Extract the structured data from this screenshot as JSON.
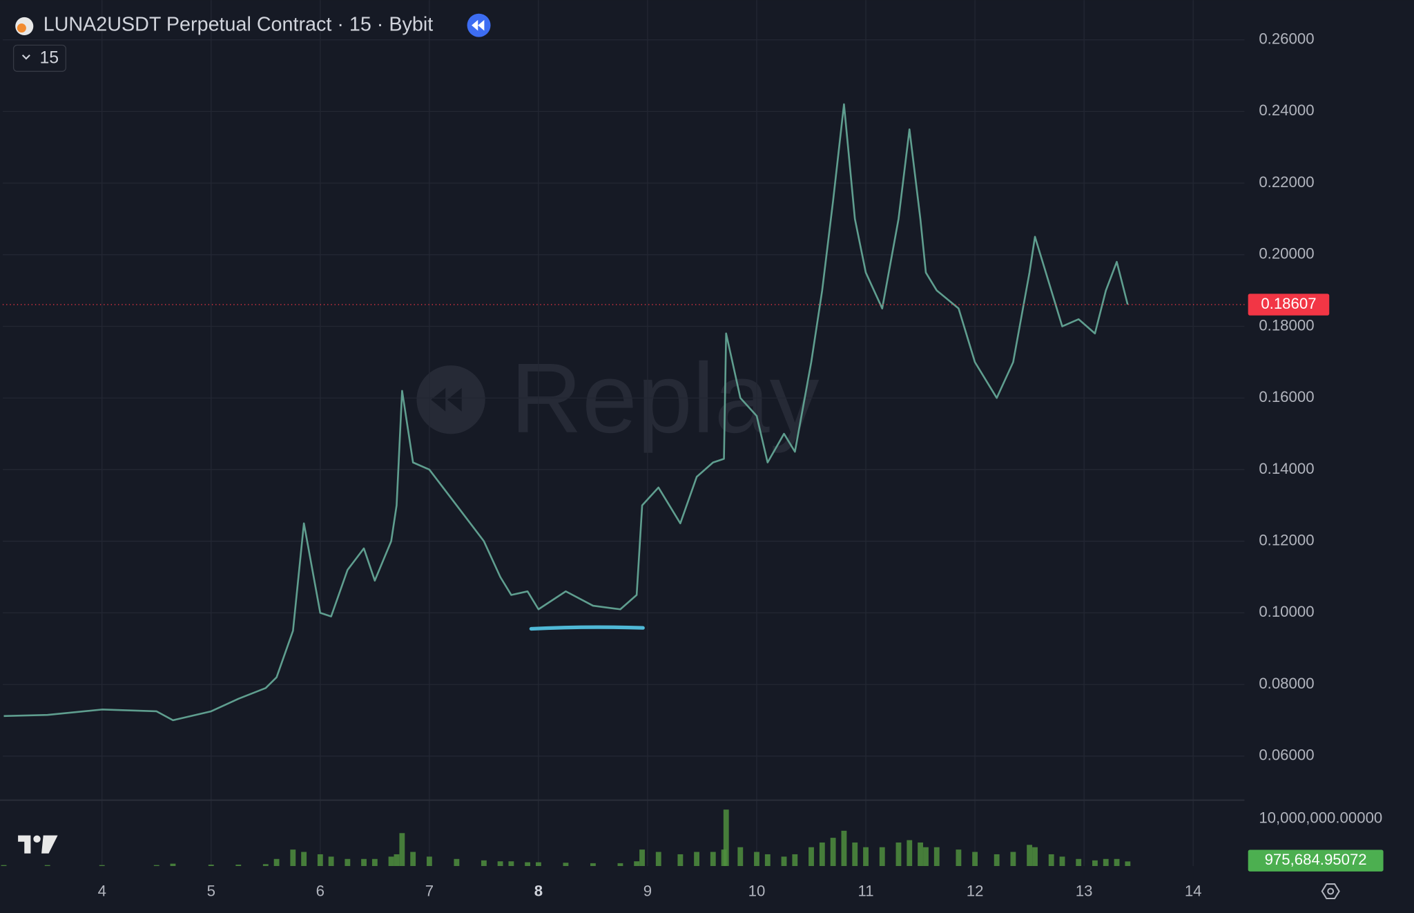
{
  "chart_data": [
    {
      "type": "line",
      "title": "LUNA2USDT Perpetual Contract · 15 · Bybit",
      "interval": "15",
      "watermark": "Replay",
      "color": "#5f9e8f",
      "x": [
        3.1,
        3.5,
        4.0,
        4.5,
        4.65,
        5.0,
        5.25,
        5.5,
        5.6,
        5.75,
        5.85,
        6.0,
        6.1,
        6.25,
        6.4,
        6.5,
        6.65,
        6.7,
        6.75,
        6.85,
        7.0,
        7.25,
        7.5,
        7.65,
        7.75,
        7.9,
        8.0,
        8.25,
        8.5,
        8.75,
        8.9,
        8.95,
        9.1,
        9.3,
        9.45,
        9.6,
        9.7,
        9.72,
        9.85,
        10.0,
        10.1,
        10.25,
        10.35,
        10.5,
        10.6,
        10.7,
        10.8,
        10.9,
        11.0,
        11.15,
        11.3,
        11.4,
        11.5,
        11.55,
        11.65,
        11.85,
        12.0,
        12.2,
        12.35,
        12.5,
        12.55,
        12.7,
        12.8,
        12.95,
        13.1,
        13.2,
        13.3,
        13.4
      ],
      "values": [
        0.0712,
        0.0715,
        0.073,
        0.0725,
        0.07,
        0.0725,
        0.076,
        0.079,
        0.082,
        0.095,
        0.125,
        0.1,
        0.099,
        0.112,
        0.118,
        0.109,
        0.12,
        0.13,
        0.162,
        0.142,
        0.14,
        0.13,
        0.12,
        0.11,
        0.105,
        0.106,
        0.101,
        0.106,
        0.102,
        0.101,
        0.105,
        0.13,
        0.135,
        0.125,
        0.138,
        0.142,
        0.143,
        0.178,
        0.16,
        0.155,
        0.142,
        0.15,
        0.145,
        0.17,
        0.19,
        0.215,
        0.242,
        0.21,
        0.195,
        0.185,
        0.21,
        0.235,
        0.21,
        0.195,
        0.19,
        0.185,
        0.17,
        0.16,
        0.17,
        0.195,
        0.205,
        0.19,
        0.18,
        0.182,
        0.178,
        0.19,
        0.198,
        0.18607
      ],
      "last_value": 0.18607,
      "last_color": "#f23645",
      "xlim": [
        3.09,
        14.47
      ],
      "xticks": [
        4,
        5,
        6,
        7,
        8,
        9,
        10,
        11,
        12,
        13,
        14
      ],
      "ylim": [
        0.0482,
        0.2711
      ],
      "yticks": [
        {
          "value": 0.26,
          "label": "0.26000"
        },
        {
          "value": 0.24,
          "label": "0.24000"
        },
        {
          "value": 0.22,
          "label": "0.22000"
        },
        {
          "value": 0.2,
          "label": "0.20000"
        },
        {
          "value": 0.18,
          "label": "0.18000"
        },
        {
          "value": 0.16,
          "label": "0.16000"
        },
        {
          "value": 0.14,
          "label": "0.14000"
        },
        {
          "value": 0.12,
          "label": "0.12000"
        },
        {
          "value": 0.1,
          "label": "0.10000"
        },
        {
          "value": 0.08,
          "label": "0.08000"
        },
        {
          "value": 0.06,
          "label": "0.06000"
        }
      ],
      "grid": true
    },
    {
      "type": "bar",
      "color": "#4f8f3e",
      "x": [
        3.1,
        3.5,
        4.0,
        4.5,
        4.65,
        5.0,
        5.25,
        5.5,
        5.6,
        5.75,
        5.85,
        6.0,
        6.1,
        6.25,
        6.4,
        6.5,
        6.65,
        6.7,
        6.75,
        6.85,
        7.0,
        7.25,
        7.5,
        7.65,
        7.75,
        7.9,
        8.0,
        8.25,
        8.5,
        8.75,
        8.9,
        8.95,
        9.1,
        9.3,
        9.45,
        9.6,
        9.7,
        9.72,
        9.85,
        10.0,
        10.1,
        10.25,
        10.35,
        10.5,
        10.6,
        10.7,
        10.8,
        10.9,
        11.0,
        11.15,
        11.3,
        11.4,
        11.5,
        11.55,
        11.65,
        11.85,
        12.0,
        12.2,
        12.35,
        12.5,
        12.55,
        12.7,
        12.8,
        12.95,
        13.1,
        13.2,
        13.3,
        13.4
      ],
      "values": [
        200000,
        200000,
        200000,
        200000,
        500000,
        300000,
        300000,
        400000,
        1500000,
        3500000,
        3000000,
        2500000,
        2000000,
        1500000,
        1500000,
        1500000,
        2000000,
        2500000,
        7000000,
        3000000,
        2000000,
        1500000,
        1200000,
        1000000,
        1000000,
        800000,
        800000,
        700000,
        600000,
        600000,
        1000000,
        3500000,
        3000000,
        2500000,
        3000000,
        3000000,
        3500000,
        12000000,
        4000000,
        3000000,
        2500000,
        2000000,
        2500000,
        4000000,
        5000000,
        6000000,
        7500000,
        5000000,
        4000000,
        4000000,
        5000000,
        5500000,
        5000000,
        4000000,
        4000000,
        3500000,
        3000000,
        2500000,
        3000000,
        4500000,
        4000000,
        2500000,
        2000000,
        1500000,
        1200000,
        1500000,
        1500000,
        975684.95072
      ],
      "last_value": 975684.95072,
      "last_value_label": "975,684.95072",
      "last_color": "#4caf50",
      "ylim": [
        0,
        14000000
      ],
      "yticks": [
        {
          "value": 10000000,
          "label": "10,000,000.00000"
        }
      ]
    }
  ]
}
